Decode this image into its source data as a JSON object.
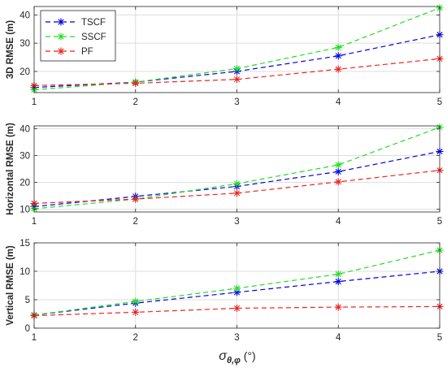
{
  "figure": {
    "xlabel_symbol": "σ",
    "xlabel_subscript": "θ,φ",
    "xlabel_unit": " (°)"
  },
  "colors": {
    "TSCF": "#0000e6",
    "SSCF": "#22dd22",
    "PF": "#ee2222",
    "grid": "#dddddd",
    "axis": "#262626"
  },
  "chart_data": [
    {
      "type": "line",
      "ylabel": "3D RMSE (m)",
      "x": [
        1,
        2,
        3,
        4,
        5
      ],
      "xlim": [
        1,
        5
      ],
      "ylim": [
        12.5,
        43
      ],
      "yticks": [
        20,
        30,
        40
      ],
      "xticks": [
        1,
        2,
        3,
        4,
        5
      ],
      "grid": true,
      "legend": "top-left",
      "series": [
        {
          "name": "TSCF",
          "values": [
            14.3,
            16.2,
            20.0,
            25.5,
            33.0
          ]
        },
        {
          "name": "SSCF",
          "values": [
            13.5,
            16.2,
            21.0,
            28.5,
            42.5
          ]
        },
        {
          "name": "PF",
          "values": [
            15.0,
            15.8,
            17.2,
            20.8,
            24.5
          ]
        }
      ]
    },
    {
      "type": "line",
      "ylabel": "Horizontal RMSE (m)",
      "x": [
        1,
        2,
        3,
        4,
        5
      ],
      "xlim": [
        1,
        5
      ],
      "ylim": [
        9,
        41
      ],
      "yticks": [
        10,
        20,
        30,
        40
      ],
      "xticks": [
        1,
        2,
        3,
        4,
        5
      ],
      "grid": true,
      "series": [
        {
          "name": "TSCF",
          "values": [
            11.0,
            14.8,
            18.5,
            24.0,
            31.5
          ]
        },
        {
          "name": "SSCF",
          "values": [
            10.2,
            13.8,
            19.5,
            26.5,
            40.5
          ]
        },
        {
          "name": "PF",
          "values": [
            12.2,
            13.8,
            16.0,
            20.2,
            24.5
          ]
        }
      ]
    },
    {
      "type": "line",
      "ylabel": "Vertical RMSE (m)",
      "x": [
        1,
        2,
        3,
        4,
        5
      ],
      "xlim": [
        1,
        5
      ],
      "ylim": [
        0,
        15
      ],
      "yticks": [
        0,
        5,
        10,
        15
      ],
      "xticks": [
        1,
        2,
        3,
        4,
        5
      ],
      "grid": true,
      "series": [
        {
          "name": "TSCF",
          "values": [
            2.3,
            4.4,
            6.3,
            8.2,
            10.0
          ]
        },
        {
          "name": "SSCF",
          "values": [
            2.3,
            4.7,
            7.0,
            9.5,
            13.7
          ]
        },
        {
          "name": "PF",
          "values": [
            2.2,
            2.8,
            3.5,
            3.7,
            3.8
          ]
        }
      ]
    }
  ]
}
